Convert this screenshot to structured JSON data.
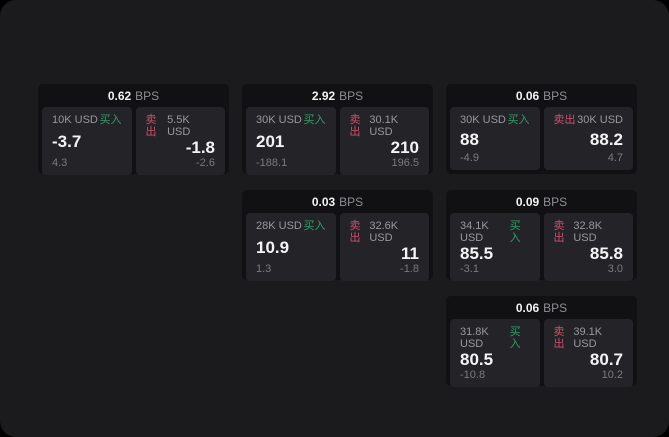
{
  "page": {
    "outer_background": "#000000",
    "surface_background": "#1b1b1d"
  },
  "labels": {
    "buy": "买入",
    "sell": "卖出",
    "bps_unit": "BPS"
  },
  "colors": {
    "buy_green": "#2f9e68",
    "sell_red": "#cc4f6d",
    "card_background": "#111113",
    "panel_background": "#242428",
    "price_text": "#f4f4f5",
    "amount_text": "#98989d",
    "sub_text": "#7a7a7f"
  },
  "cards": [
    {
      "bps": "0.62",
      "buy": {
        "amount": "10K USD",
        "price": "-3.7",
        "change": "4.3"
      },
      "sell": {
        "amount": "5.5K USD",
        "price": "-1.8",
        "change": "-2.6"
      }
    },
    {
      "bps": "2.92",
      "buy": {
        "amount": "30K USD",
        "price": "201",
        "change": "-188.1"
      },
      "sell": {
        "amount": "30.1K USD",
        "price": "210",
        "change": "196.5"
      }
    },
    {
      "bps": "0.06",
      "buy": {
        "amount": "30K USD",
        "price": "88",
        "change": "-4.9"
      },
      "sell": {
        "amount": "30K USD",
        "price": "88.2",
        "change": "4.7"
      }
    },
    {
      "bps": "0.03",
      "buy": {
        "amount": "28K USD",
        "price": "10.9",
        "change": "1.3"
      },
      "sell": {
        "amount": "32.6K USD",
        "price": "11",
        "change": "-1.8"
      }
    },
    {
      "bps": "0.09",
      "buy": {
        "amount": "34.1K USD",
        "price": "85.5",
        "change": "-3.1"
      },
      "sell": {
        "amount": "32.8K USD",
        "price": "85.8",
        "change": "3.0"
      }
    },
    {
      "bps": "0.06",
      "buy": {
        "amount": "31.8K USD",
        "price": "80.5",
        "change": "-10.8"
      },
      "sell": {
        "amount": "39.1K USD",
        "price": "80.7",
        "change": "10.2"
      }
    }
  ]
}
